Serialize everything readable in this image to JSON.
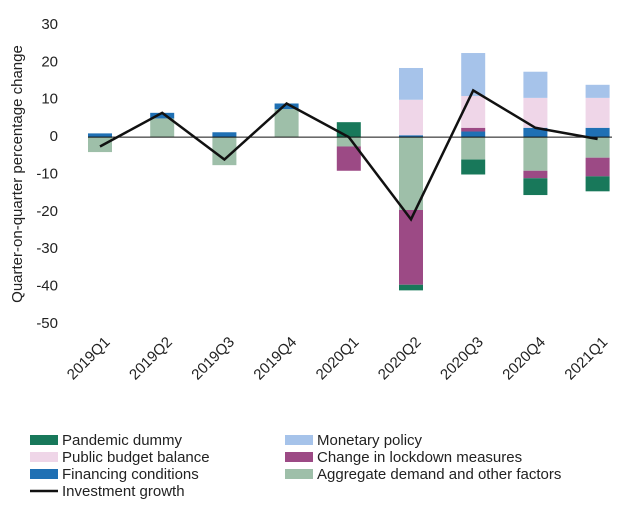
{
  "chart_data": {
    "type": "stacked-bar-line",
    "ylabel": "Quarter-on-quarter percentage change",
    "categories": [
      "2019Q1",
      "2019Q2",
      "2019Q3",
      "2019Q4",
      "2020Q1",
      "2020Q2",
      "2020Q3",
      "2020Q4",
      "2021Q1"
    ],
    "series": [
      {
        "name": "Pandemic dummy",
        "color": "#18785a",
        "values": [
          0,
          0,
          0,
          0,
          4,
          -1.5,
          -4,
          -4.5,
          -4
        ]
      },
      {
        "name": "Monetary policy",
        "color": "#a6c3ea",
        "values": [
          0,
          0,
          0,
          0,
          0,
          8.5,
          11.5,
          7,
          3.5
        ]
      },
      {
        "name": "Public budget balance",
        "color": "#efd6e8",
        "values": [
          0,
          0,
          0,
          0,
          0,
          9.5,
          8.5,
          8,
          8
        ]
      },
      {
        "name": "Change in lockdown measures",
        "color": "#9c4a85",
        "values": [
          0,
          0,
          0,
          0,
          -6.5,
          -20,
          1,
          -2,
          -5
        ]
      },
      {
        "name": "Financing conditions",
        "color": "#1f70b4",
        "values": [
          1,
          1.5,
          1.3,
          1.5,
          0,
          0.5,
          1.5,
          2.5,
          2.5
        ]
      },
      {
        "name": "Aggregate demand and other factors",
        "color": "#9ebfa9",
        "values": [
          -4,
          5,
          -7.5,
          7.5,
          -2.5,
          -19.5,
          -6,
          -9,
          -5.5
        ]
      }
    ],
    "line": {
      "name": "Investment growth",
      "color": "#111111",
      "values": [
        -2.5,
        6.5,
        -6,
        9,
        0,
        -22,
        12.5,
        2.5,
        -0.5
      ]
    },
    "ylim": [
      -50,
      30
    ],
    "yticks": [
      30,
      20,
      10,
      0,
      -10,
      -20,
      -30,
      -40,
      -50
    ]
  }
}
